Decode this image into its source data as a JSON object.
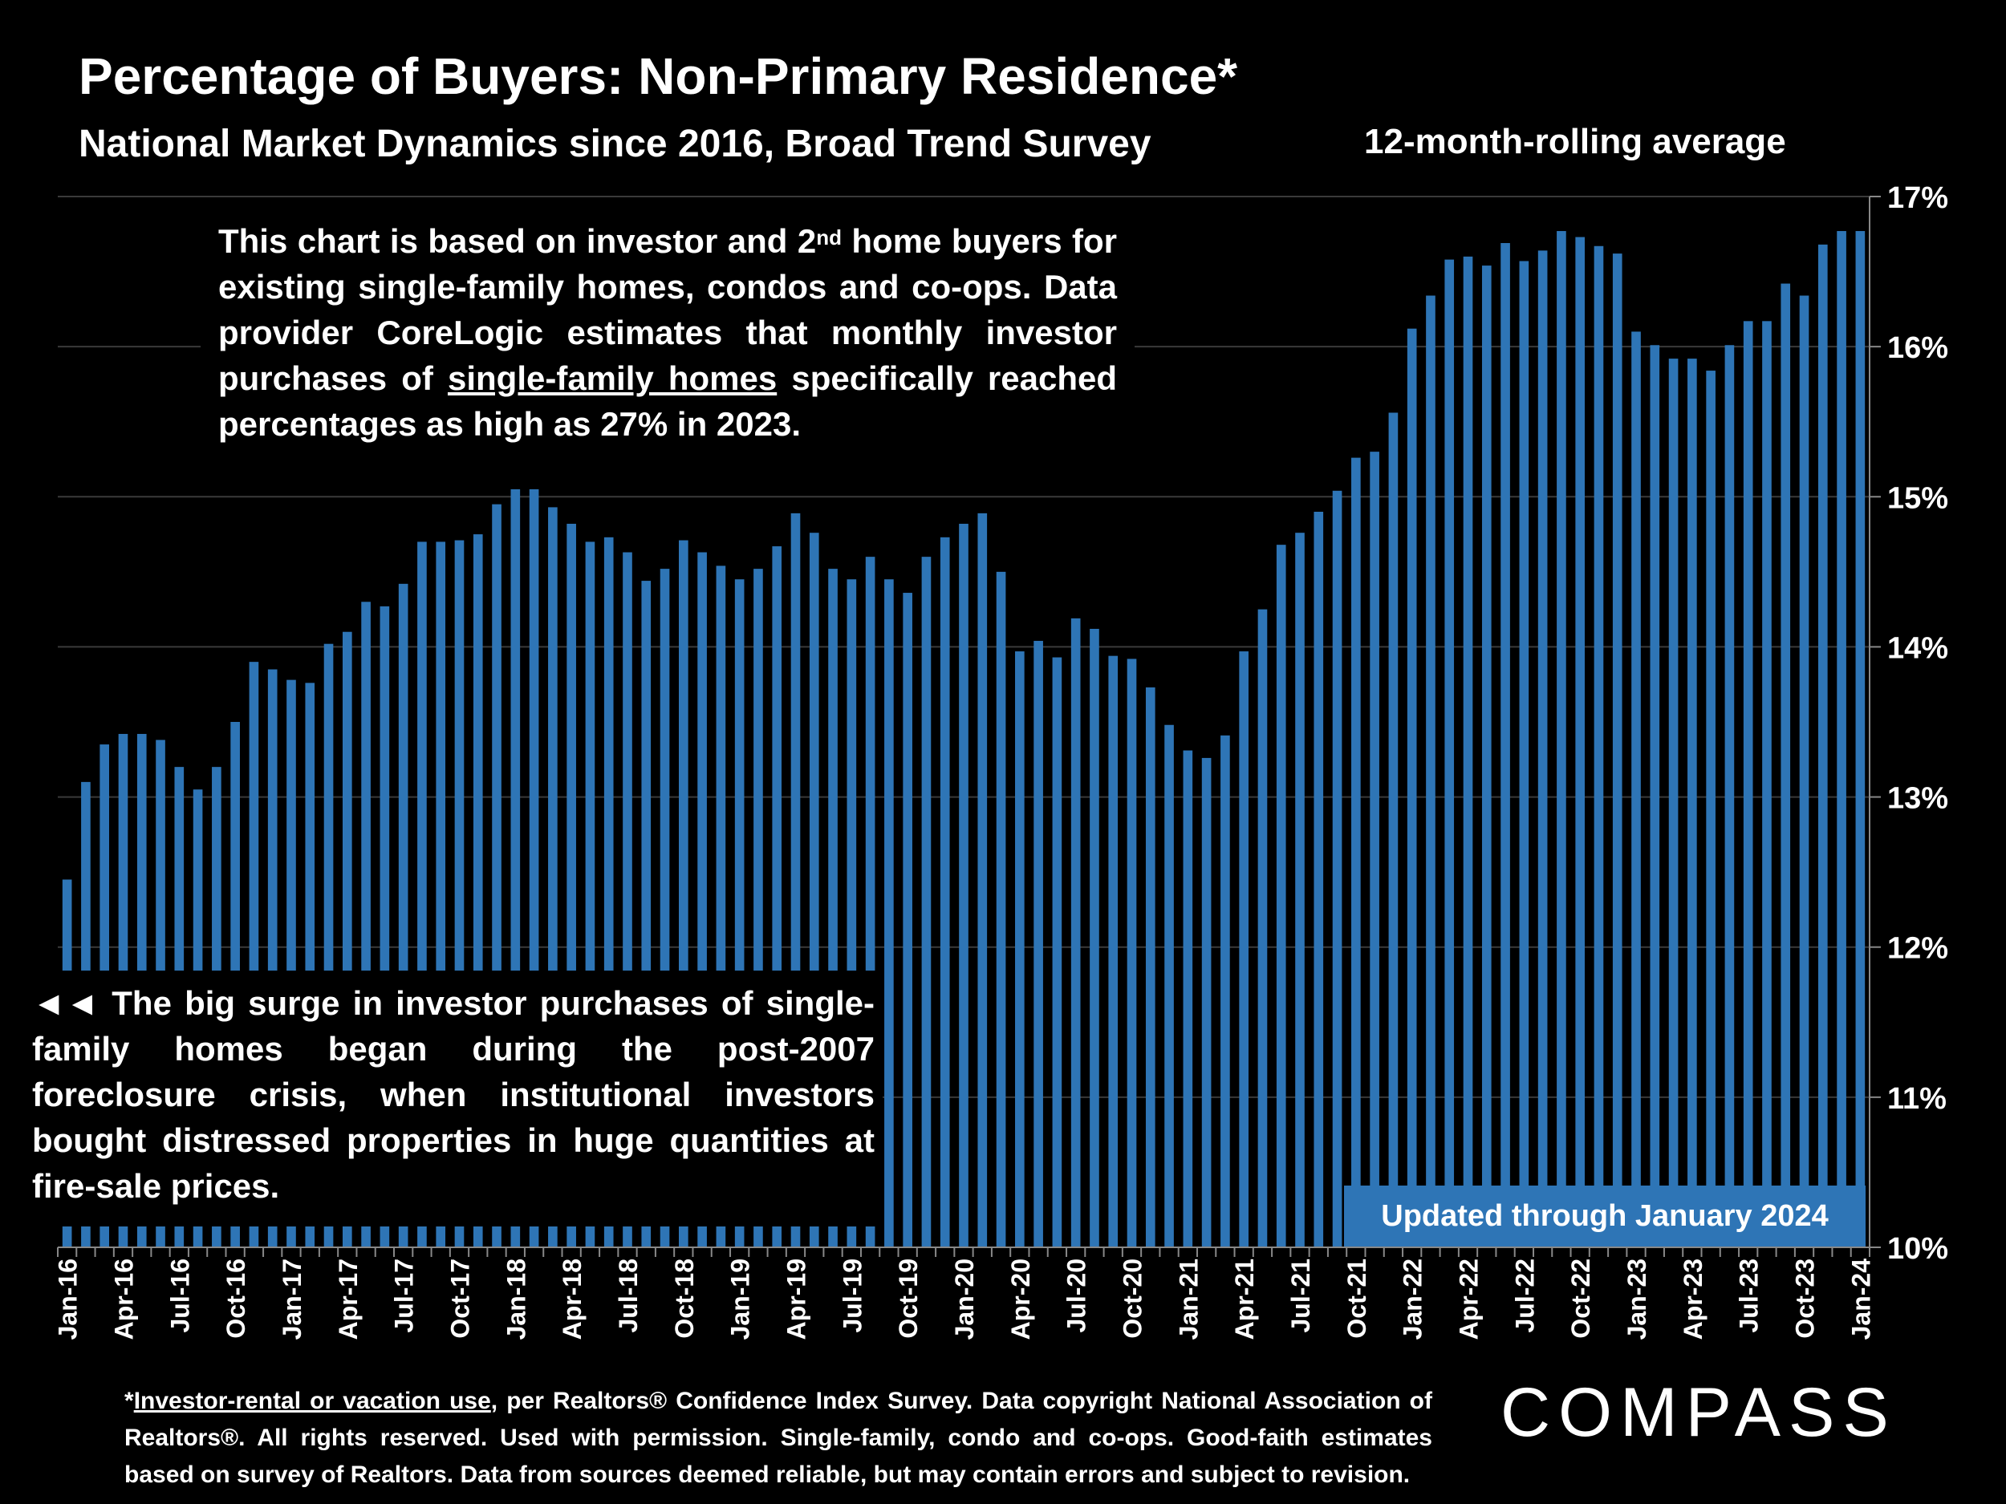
{
  "header": {
    "title": "Percentage of Buyers: Non-Primary Residence*",
    "subtitle": "National Market Dynamics since 2016, Broad Trend Survey",
    "rolling_label": "12-month-rolling average"
  },
  "note_top": {
    "part1": "This chart is based on investor and 2",
    "sup": "nd",
    "part2": " home buyers for existing single-family homes, condos and co-ops. Data provider CoreLogic estimates that monthly investor purchases of ",
    "link": "single-family homes",
    "part3": " specifically reached percentages as high as 27% in 2023."
  },
  "note_bottom": {
    "text": "◄◄ The big surge in investor purchases of single-family homes began during the post-2007 foreclosure crisis, when institutional investors bought distressed properties in huge quantities at fire-sale prices."
  },
  "updated_badge": "Updated through January 2024",
  "footnote": {
    "prefix": "*",
    "link": "Investor-rental or vacation use",
    "text": ", per Realtors® Confidence Index Survey. Data copyright National Association of Realtors®. All rights reserved. Used with permission. Single-family, condo and co-ops. Good-faith estimates based on survey of Realtors. Data from sources deemed reliable, but may contain errors and subject to revision."
  },
  "logo": "COMPASS",
  "chart_data": {
    "type": "bar",
    "title": "Percentage of Buyers: Non-Primary Residence*",
    "ylabel": "12-month-rolling average",
    "ylim": [
      10,
      17
    ],
    "y_ticks": [
      "10%",
      "11%",
      "12%",
      "13%",
      "14%",
      "15%",
      "16%",
      "17%"
    ],
    "start": "Jan-16",
    "x_tick_labels": [
      "Jan-16",
      "Apr-16",
      "Jul-16",
      "Oct-16",
      "Jan-17",
      "Apr-17",
      "Jul-17",
      "Oct-17",
      "Jan-18",
      "Apr-18",
      "Jul-18",
      "Oct-18",
      "Jan-19",
      "Apr-19",
      "Jul-19",
      "Oct-19",
      "Jan-20",
      "Apr-20",
      "Jul-20",
      "Oct-20",
      "Jan-21",
      "Apr-21",
      "Jul-21",
      "Oct-21",
      "Jan-22",
      "Apr-22",
      "Jul-22",
      "Oct-22",
      "Jan-23",
      "Apr-23",
      "Jul-23",
      "Oct-23",
      "Jan-24"
    ],
    "bar_color": "#2e75b6",
    "values": [
      12.45,
      13.1,
      13.35,
      13.42,
      13.42,
      13.38,
      13.2,
      13.05,
      13.2,
      13.5,
      13.9,
      13.85,
      13.78,
      13.76,
      14.02,
      14.1,
      14.3,
      14.27,
      14.42,
      14.7,
      14.7,
      14.71,
      14.75,
      14.95,
      15.05,
      15.05,
      14.93,
      14.82,
      14.7,
      14.73,
      14.63,
      14.44,
      14.52,
      14.71,
      14.63,
      14.54,
      14.45,
      14.52,
      14.67,
      14.89,
      14.76,
      14.52,
      14.45,
      14.6,
      14.45,
      14.36,
      14.6,
      14.73,
      14.82,
      14.89,
      14.5,
      13.97,
      14.04,
      13.93,
      14.19,
      14.12,
      13.94,
      13.92,
      13.73,
      13.48,
      13.31,
      13.26,
      13.41,
      13.97,
      14.25,
      14.68,
      14.76,
      14.9,
      15.04,
      15.26,
      15.3,
      15.56,
      16.12,
      16.34,
      16.58,
      16.6,
      16.54,
      16.69,
      16.57,
      16.64,
      16.77,
      16.73,
      16.67,
      16.62,
      16.1,
      16.01,
      15.92,
      15.92,
      15.84,
      16.01,
      16.17,
      16.17,
      16.42,
      16.34,
      16.68,
      16.77,
      16.77
    ]
  }
}
